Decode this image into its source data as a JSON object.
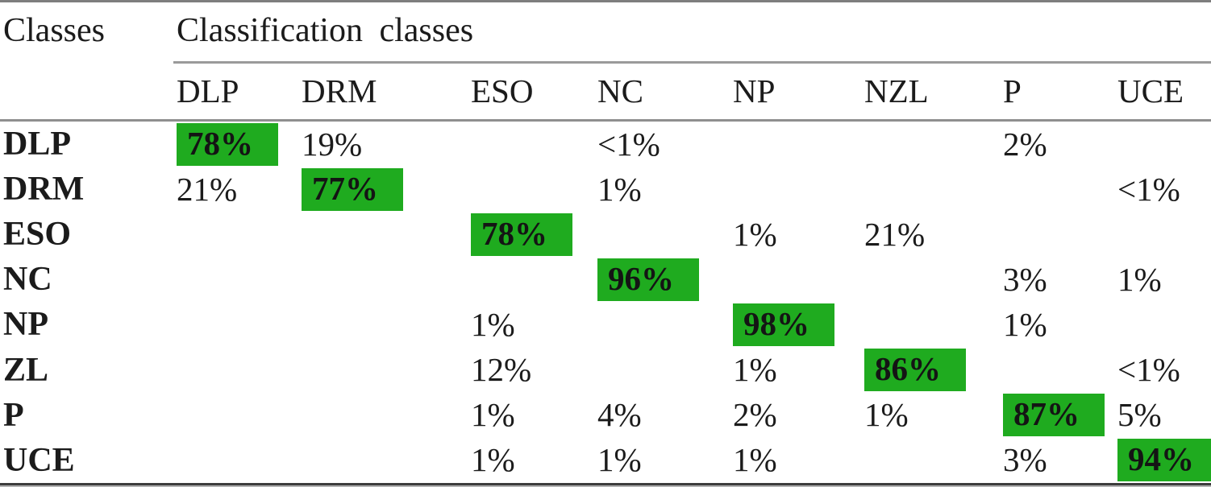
{
  "table": {
    "corner_label": "Classes",
    "group_header": "Classification classes",
    "columns": [
      "DLP",
      "DRM",
      "ESO",
      "NC",
      "NP",
      "NZL",
      "P",
      "UCE"
    ],
    "rows": [
      {
        "label": "DLP",
        "highlight": 0,
        "cells": [
          "78%",
          "19%",
          "",
          "<1%",
          "",
          "",
          "2%",
          ""
        ]
      },
      {
        "label": "DRM",
        "highlight": 1,
        "cells": [
          "21%",
          "77%",
          "",
          "1%",
          "",
          "",
          "",
          "<1%"
        ]
      },
      {
        "label": "ESO",
        "highlight": 2,
        "cells": [
          "",
          "",
          "78%",
          "",
          "1%",
          "21%",
          "",
          ""
        ]
      },
      {
        "label": "NC",
        "highlight": 3,
        "cells": [
          "",
          "",
          "",
          "96%",
          "",
          "",
          "3%",
          "1%"
        ]
      },
      {
        "label": "NP",
        "highlight": 4,
        "cells": [
          "",
          "",
          "1%",
          "",
          "98%",
          "",
          "1%",
          ""
        ]
      },
      {
        "label": "ZL",
        "highlight": 5,
        "cells": [
          "",
          "",
          "12%",
          "",
          "1%",
          "86%",
          "",
          "<1%"
        ]
      },
      {
        "label": "P",
        "highlight": 6,
        "cells": [
          "",
          "",
          "1%",
          "4%",
          "2%",
          "1%",
          "87%",
          "5%"
        ]
      },
      {
        "label": "UCE",
        "highlight": 7,
        "cells": [
          "",
          "",
          "1%",
          "1%",
          "1%",
          "",
          "3%",
          "94%"
        ]
      }
    ],
    "highlight_color": "#1fab1f"
  }
}
